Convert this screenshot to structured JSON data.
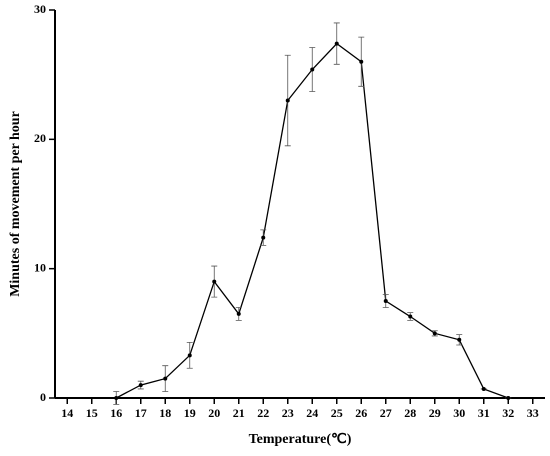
{
  "chart_data": {
    "type": "line",
    "x_label": "Temperature(℃)",
    "y_label": "Minutes of movement per hour",
    "x": [
      16,
      17,
      18,
      19,
      20,
      21,
      22,
      23,
      24,
      25,
      26,
      27,
      28,
      29,
      30,
      31,
      32
    ],
    "series": [
      {
        "color": "#000000",
        "values": [
          0,
          1.0,
          1.5,
          3.3,
          9.0,
          6.5,
          12.4,
          23.0,
          25.4,
          27.4,
          26.0,
          7.5,
          6.3,
          5.0,
          4.5,
          0.7,
          0
        ],
        "errors": [
          0.5,
          0.3,
          1.0,
          1.0,
          1.2,
          0.5,
          0.6,
          3.5,
          1.7,
          1.6,
          1.9,
          0.5,
          0.3,
          0.2,
          0.4,
          0,
          0
        ]
      }
    ],
    "xlim": [
      13.5,
      33.5
    ],
    "xticks": [
      14,
      15,
      16,
      17,
      18,
      19,
      20,
      21,
      22,
      23,
      24,
      25,
      26,
      27,
      28,
      29,
      30,
      31,
      32,
      33
    ],
    "ylim": [
      0,
      30
    ],
    "yticks": [
      0,
      10,
      20,
      30
    ]
  }
}
